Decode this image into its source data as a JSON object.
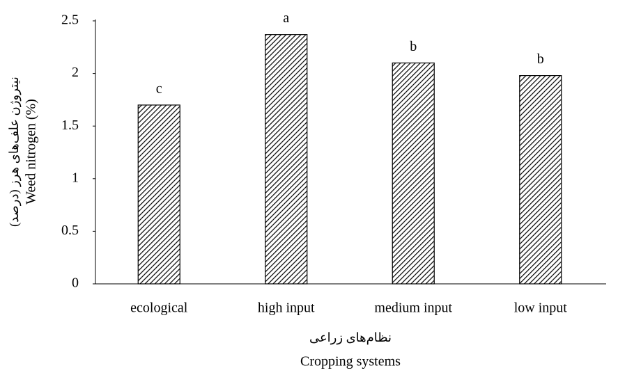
{
  "chart_data": {
    "type": "bar",
    "categories": [
      "ecological",
      "high input",
      "medium input",
      "low input"
    ],
    "values": [
      1.7,
      2.37,
      2.1,
      1.98
    ],
    "letters": [
      "c",
      "a",
      "b",
      "b"
    ],
    "color": "#000000",
    "ylim": [
      0,
      2.5
    ],
    "yticks": [
      0,
      0.5,
      1,
      1.5,
      2,
      2.5
    ],
    "ylabel": [
      "نیتروژن علف‌های هرز (درصد)",
      "Weed nitrogen (%)"
    ],
    "xlabel": [
      "نظام‌های زراعی",
      "Cropping systems"
    ],
    "grid": false
  }
}
